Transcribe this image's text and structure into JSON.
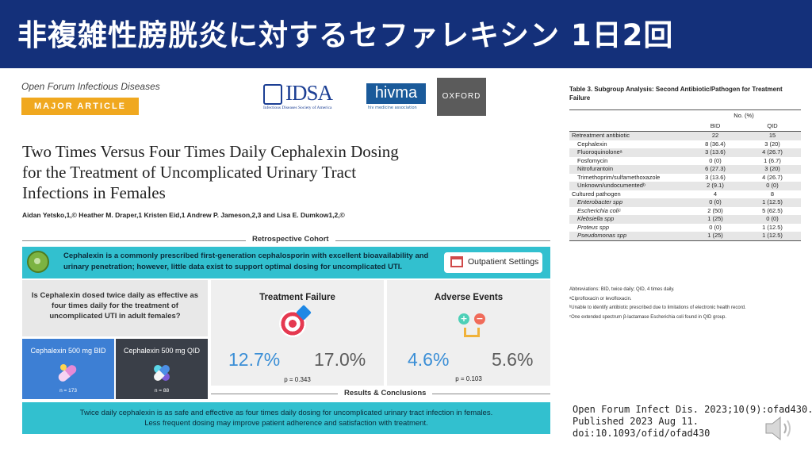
{
  "slide": {
    "title": "非複雑性膀胱炎に対するセファレキシン 1日2回"
  },
  "paper": {
    "journal": "Open Forum Infectious Diseases",
    "article_type": "MAJOR ARTICLE",
    "logos": {
      "idsa": "IDSA",
      "idsa_sub": "Infectious Diseases Society of America",
      "hivma": "hivma",
      "hivma_sub": "hiv medicine association",
      "oxford": "OXFORD"
    },
    "title_lines": [
      "Two Times Versus Four Times Daily Cephalexin Dosing",
      "for the Treatment of Uncomplicated Urinary Tract",
      "Infections in Females"
    ],
    "authors": "Aidan Yetsko,1,© Heather M. Draper,1 Kristen Eid,1 Andrew P. Jameson,2,3 and Lisa E. Dumkow1,2,©"
  },
  "abstract": {
    "cohort_label": "Retrospective Cohort",
    "intro": "Cephalexin is a commonly prescribed first-generation cephalosporin with excellent bioavailability and urinary penetration; however, little data exist to support optimal dosing for uncomplicated UTI.",
    "setting": "Outpatient Settings",
    "question": "Is Cephalexin dosed twice daily as effective as four times daily for the treatment of uncomplicated UTI in adult females?",
    "arms": [
      {
        "label": "Cephalexin 500 mg BID",
        "n": "n = 173"
      },
      {
        "label": "Cephalexin 500 mg QID",
        "n": "n = 88"
      }
    ],
    "outcomes": [
      {
        "title": "Treatment Failure",
        "bid": "12.7%",
        "qid": "17.0%",
        "p": "p = 0.343"
      },
      {
        "title": "Adverse Events",
        "bid": "4.6%",
        "qid": "5.6%",
        "p": "p = 0.103"
      }
    ],
    "results_label": "Results & Conclusions",
    "conclusion_lines": [
      "Twice daily cephalexin is as safe and effective as four times daily dosing for uncomplicated urinary tract infection in females.",
      "Less frequent dosing may improve patient adherence and satisfaction with treatment."
    ]
  },
  "table3": {
    "title": "Table 3.   Subgroup Analysis: Second Antibiotic/Pathogen for Treatment Failure",
    "group_header": "No. (%)",
    "col_bid": "BID",
    "col_qid": "QID",
    "rows": [
      {
        "label": "Retreatment antibiotic",
        "bid": "22",
        "qid": "15",
        "indent": false,
        "italic": false,
        "shade": true
      },
      {
        "label": "Cephalexin",
        "bid": "8 (36.4)",
        "qid": "3 (20)",
        "indent": true,
        "italic": false,
        "shade": false
      },
      {
        "label": "Fluoroquinoloneᵃ",
        "bid": "3 (13.6)",
        "qid": "4 (26.7)",
        "indent": true,
        "italic": false,
        "shade": true
      },
      {
        "label": "Fosfomycin",
        "bid": "0 (0)",
        "qid": "1 (6.7)",
        "indent": true,
        "italic": false,
        "shade": false
      },
      {
        "label": "Nitrofurantoin",
        "bid": "6 (27.3)",
        "qid": "3 (20)",
        "indent": true,
        "italic": false,
        "shade": true
      },
      {
        "label": "Trimethoprim/sulfamethoxazole",
        "bid": "3 (13.6)",
        "qid": "4 (26.7)",
        "indent": true,
        "italic": false,
        "shade": false
      },
      {
        "label": "Unknown/undocumentedᵇ",
        "bid": "2 (9.1)",
        "qid": "0 (0)",
        "indent": true,
        "italic": false,
        "shade": true
      },
      {
        "label": "Cultured pathogen",
        "bid": "4",
        "qid": "8",
        "indent": false,
        "italic": false,
        "shade": false
      },
      {
        "label": "Enterobacter spp",
        "bid": "0 (0)",
        "qid": "1 (12.5)",
        "indent": true,
        "italic": true,
        "shade": true
      },
      {
        "label": "Escherichia coliᶜ",
        "bid": "2 (50)",
        "qid": "5 (62.5)",
        "indent": true,
        "italic": true,
        "shade": false
      },
      {
        "label": "Klebsiella spp",
        "bid": "1 (25)",
        "qid": "0 (0)",
        "indent": true,
        "italic": true,
        "shade": true
      },
      {
        "label": "Proteus spp",
        "bid": "0 (0)",
        "qid": "1 (12.5)",
        "indent": true,
        "italic": true,
        "shade": false
      },
      {
        "label": "Pseudomonas spp",
        "bid": "1 (25)",
        "qid": "1 (12.5)",
        "indent": true,
        "italic": true,
        "shade": true
      }
    ],
    "footnotes": [
      "Abbreviations: BID, twice daily; QID, 4 times daily.",
      "ᵃCiprofloxacin or levofloxacin.",
      "ᵇUnable to identify antibiotic prescribed due to limitations of electronic health record.",
      "ᶜOne extended spectrum β-lactamase Escherichia coli found in QID group."
    ]
  },
  "citation": {
    "lines": [
      "Open Forum Infect Dis. 2023;10(9):ofad430.",
      " Published 2023 Aug 11.",
      " doi:10.1093/ofid/ofad430"
    ]
  },
  "icons": {
    "speaker": "speaker-icon"
  }
}
